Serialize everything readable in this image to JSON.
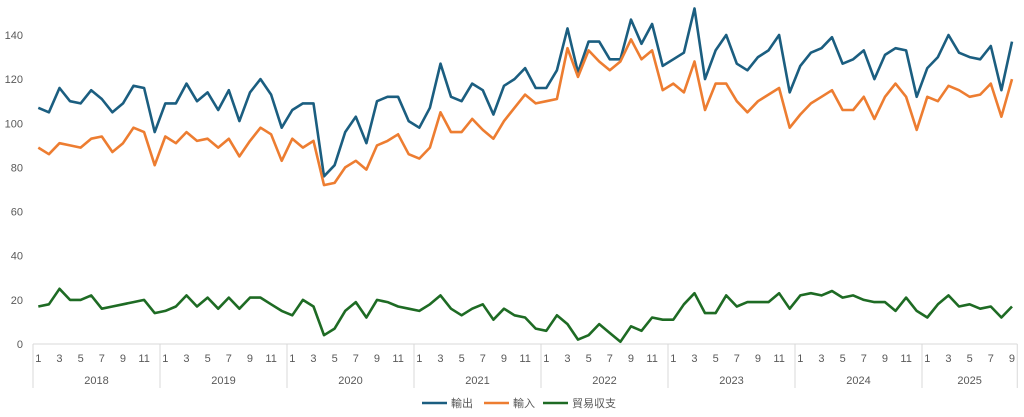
{
  "chart_data": {
    "type": "line",
    "title": "",
    "xlabel": "",
    "ylabel": "",
    "ylim": [
      0,
      140
    ],
    "yticks": [
      0,
      20,
      40,
      60,
      80,
      100,
      120,
      140
    ],
    "grid": false,
    "legend_position": "bottom",
    "years": [
      "2018",
      "2019",
      "2020",
      "2021",
      "2022",
      "2023",
      "2024",
      "2025"
    ],
    "months_per_year": [
      12,
      12,
      12,
      12,
      12,
      12,
      12,
      9
    ],
    "month_tick_labels": [
      "1",
      "3",
      "5",
      "7",
      "9",
      "11"
    ],
    "series": [
      {
        "name": "輸出",
        "color": "#1B5E80",
        "values": [
          107,
          105,
          116,
          110,
          109,
          115,
          111,
          105,
          109,
          117,
          116,
          96,
          109,
          109,
          118,
          110,
          114,
          106,
          115,
          101,
          114,
          120,
          113,
          98,
          106,
          109,
          109,
          76,
          81,
          96,
          103,
          91,
          110,
          112,
          112,
          101,
          98,
          107,
          127,
          112,
          110,
          118,
          115,
          104,
          117,
          120,
          125,
          116,
          116,
          124,
          143,
          123,
          137,
          137,
          129,
          129,
          147,
          136,
          145,
          126,
          129,
          132,
          152,
          120,
          133,
          140,
          127,
          124,
          130,
          133,
          140,
          114,
          126,
          132,
          134,
          139,
          127,
          129,
          133,
          120,
          131,
          134,
          133,
          112,
          125,
          130,
          140,
          132,
          130,
          129,
          135,
          115,
          137
        ]
      },
      {
        "name": "輸入",
        "color": "#ED7D31",
        "values": [
          89,
          86,
          91,
          90,
          89,
          93,
          94,
          87,
          91,
          98,
          96,
          81,
          94,
          91,
          96,
          92,
          93,
          89,
          93,
          85,
          92,
          98,
          95,
          83,
          93,
          89,
          92,
          72,
          73,
          80,
          83,
          79,
          90,
          92,
          95,
          86,
          84,
          89,
          105,
          96,
          96,
          102,
          97,
          93,
          101,
          107,
          113,
          109,
          110,
          111,
          134,
          121,
          133,
          128,
          124,
          128,
          138,
          129,
          133,
          115,
          118,
          114,
          128,
          106,
          118,
          118,
          110,
          105,
          110,
          113,
          116,
          98,
          104,
          109,
          112,
          115,
          106,
          106,
          112,
          102,
          112,
          118,
          112,
          97,
          112,
          110,
          117,
          115,
          112,
          113,
          118,
          103,
          120
        ]
      },
      {
        "name": "貿易収支",
        "color": "#1E6B24",
        "values": [
          17,
          18,
          25,
          20,
          20,
          22,
          16,
          17,
          18,
          19,
          20,
          14,
          15,
          17,
          22,
          17,
          21,
          16,
          21,
          16,
          21,
          21,
          18,
          15,
          13,
          20,
          17,
          4,
          7,
          15,
          19,
          12,
          20,
          19,
          17,
          16,
          15,
          18,
          22,
          16,
          13,
          16,
          18,
          11,
          16,
          13,
          12,
          7,
          6,
          13,
          9,
          2,
          4,
          9,
          5,
          1,
          8,
          6,
          12,
          11,
          11,
          18,
          23,
          14,
          14,
          22,
          17,
          19,
          19,
          19,
          23,
          16,
          22,
          23,
          22,
          24,
          21,
          22,
          20,
          19,
          19,
          15,
          21,
          15,
          12,
          18,
          22,
          17,
          18,
          16,
          17,
          12,
          17
        ]
      }
    ]
  }
}
